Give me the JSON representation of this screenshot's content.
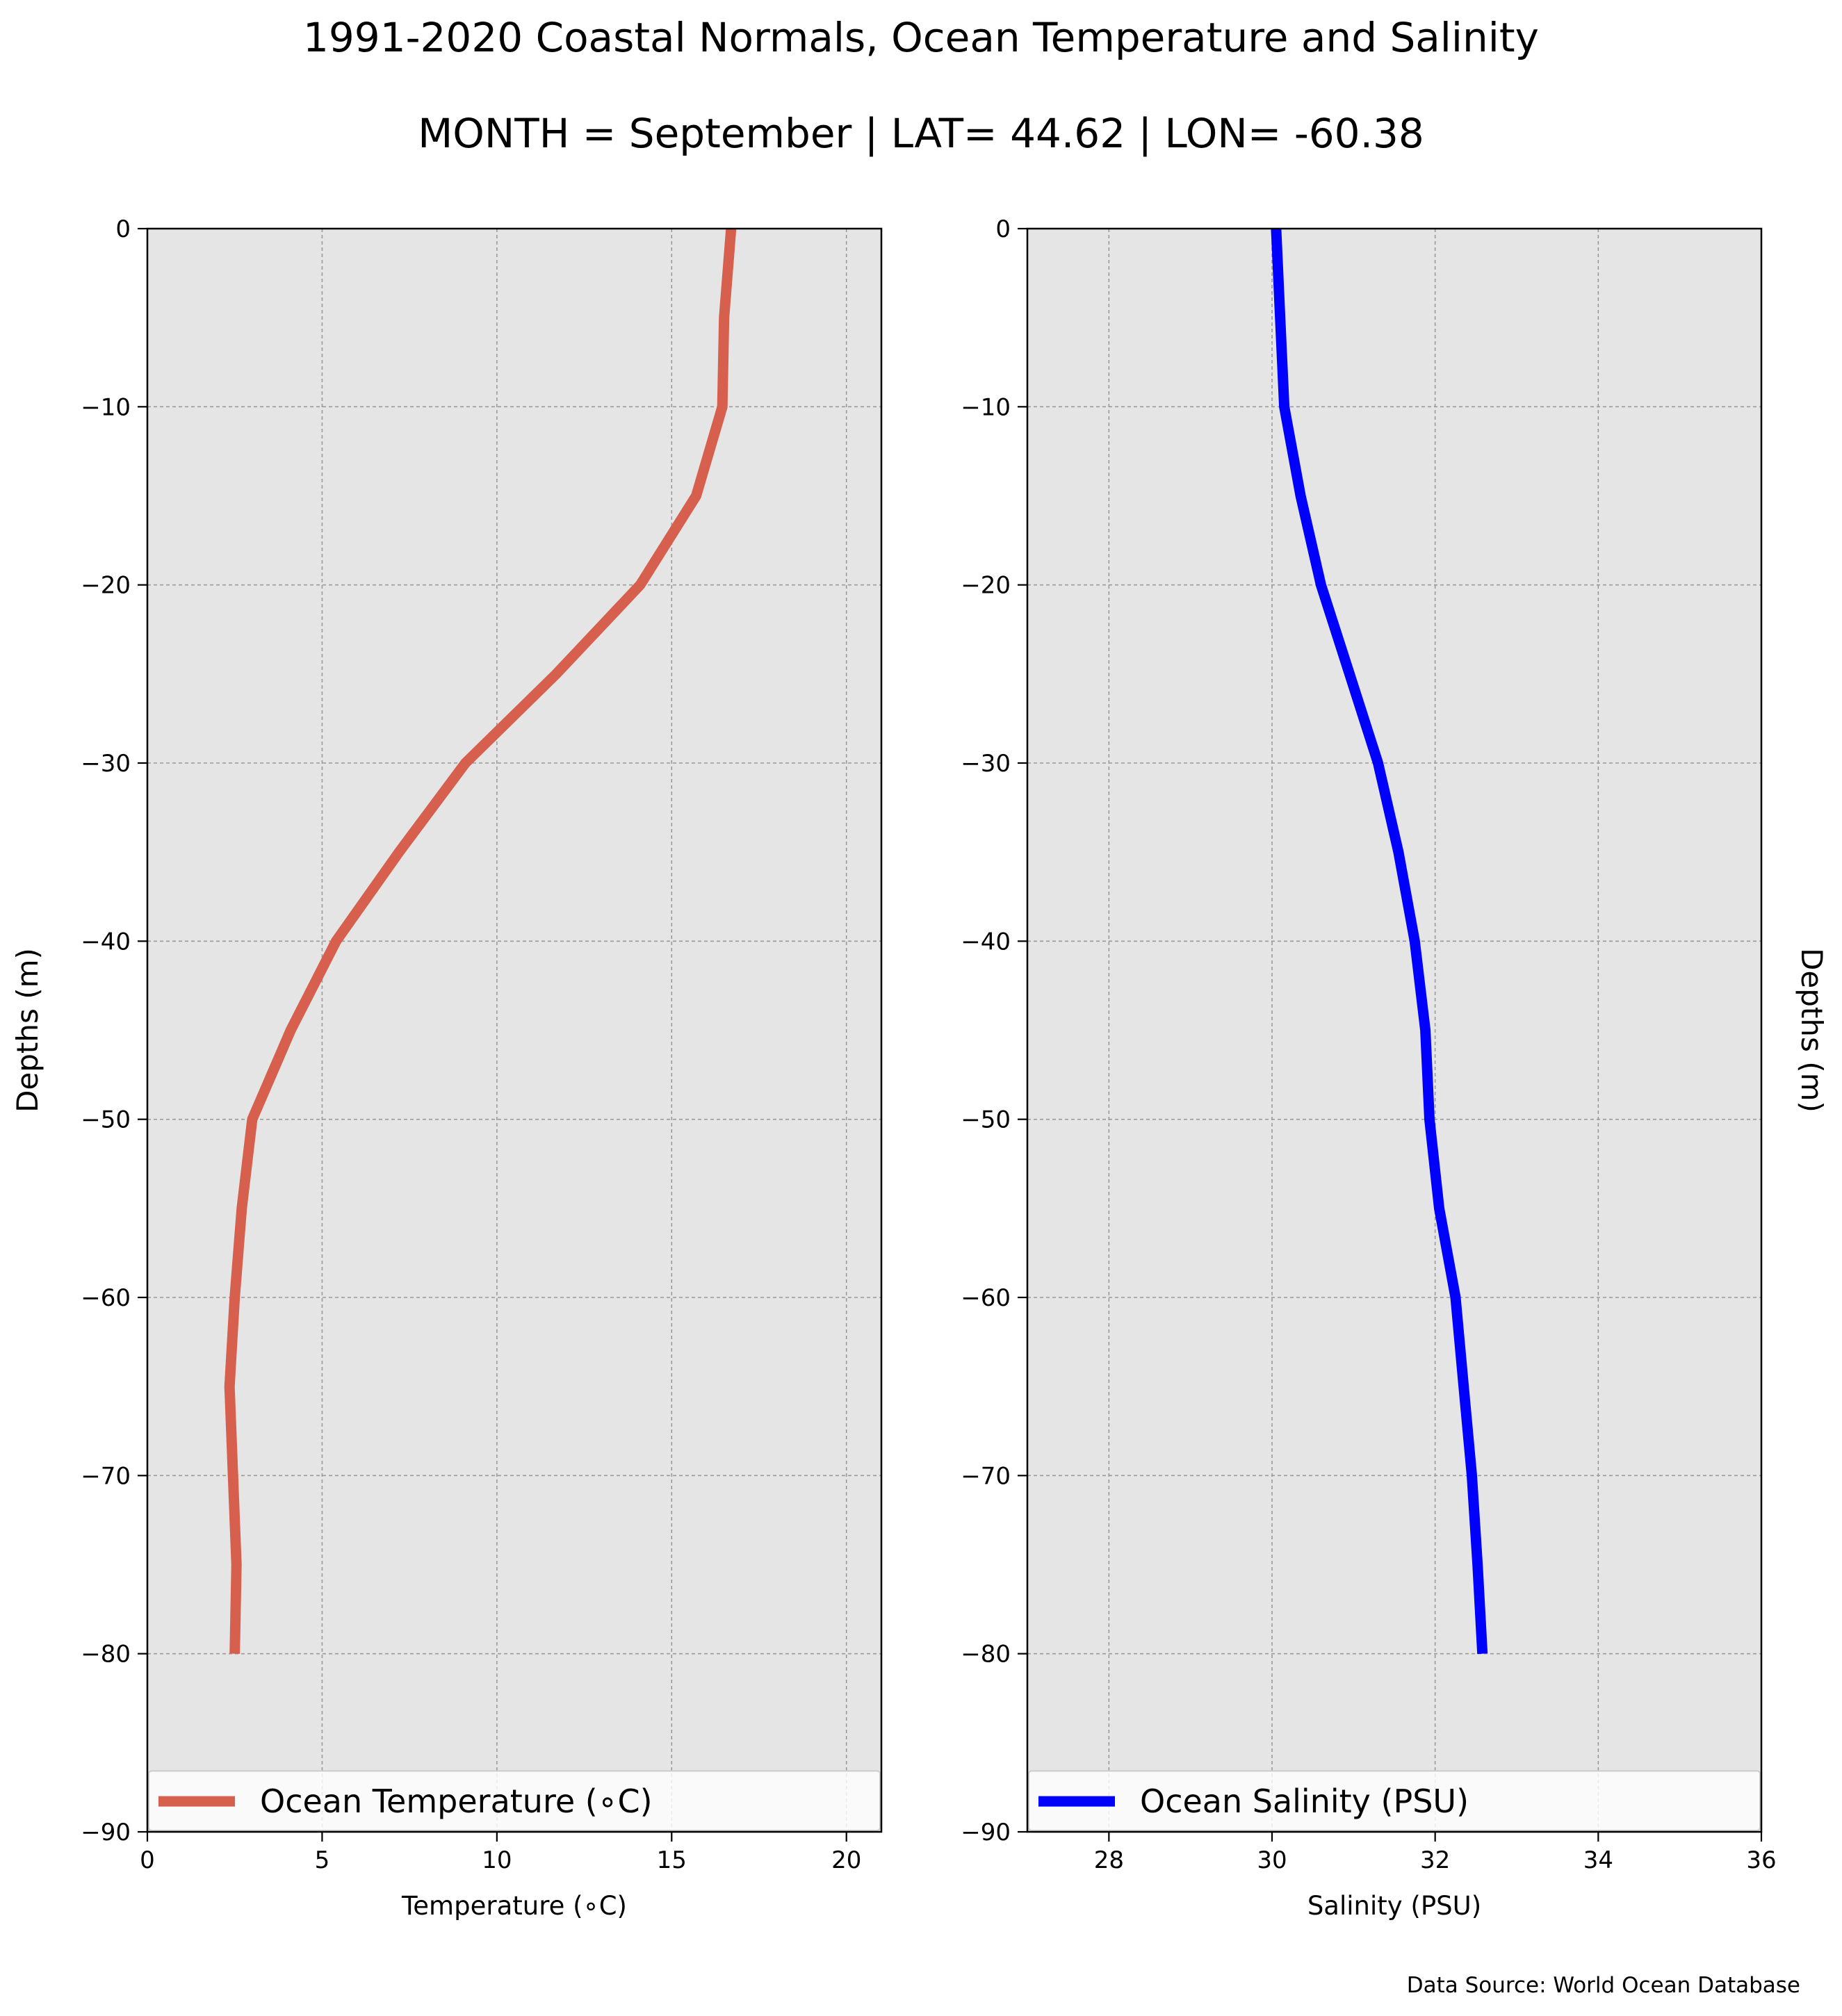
{
  "figure": {
    "title": "1991-2020 Coastal Normals, Ocean Temperature and Salinity",
    "subtitle": "MONTH = September | LAT= 44.62 | LON= -60.38",
    "source": "Data Source: World Ocean Database",
    "background_color": "#ffffff",
    "panel_color": "#e5e5e5"
  },
  "chart_data": [
    {
      "type": "line",
      "xlabel": "Temperature (∘C)",
      "ylabel": "Depths (m)",
      "xlim": [
        0,
        21
      ],
      "ylim": [
        -90,
        0
      ],
      "xticks": [
        0,
        5,
        10,
        15,
        20
      ],
      "xtick_labels": [
        "0",
        "5",
        "10",
        "15",
        "20"
      ],
      "yticks": [
        0,
        -10,
        -20,
        -30,
        -40,
        -50,
        -60,
        -70,
        -80,
        -90
      ],
      "ytick_labels": [
        "0",
        "−10",
        "−20",
        "−30",
        "−40",
        "−50",
        "−60",
        "−70",
        "−80",
        "−90"
      ],
      "grid": true,
      "legend_position": "bottom",
      "series": [
        {
          "name": "Ocean Temperature (∘C)",
          "color": "#d6604d",
          "x": [
            16.7,
            16.5,
            16.45,
            15.7,
            14.1,
            11.7,
            9.1,
            7.2,
            5.4,
            4.1,
            3.0,
            2.7,
            2.5,
            2.35,
            2.45,
            2.55,
            2.5
          ],
          "y": [
            0,
            -5,
            -10,
            -15,
            -20,
            -25,
            -30,
            -35,
            -40,
            -45,
            -50,
            -55,
            -60,
            -65,
            -70,
            -75,
            -80
          ]
        }
      ]
    },
    {
      "type": "line",
      "xlabel": "Salinity (PSU)",
      "ylabel": "Depths (m)",
      "xlim": [
        27,
        36
      ],
      "ylim": [
        -90,
        0
      ],
      "xticks": [
        28,
        30,
        32,
        34,
        36
      ],
      "xtick_labels": [
        "28",
        "30",
        "32",
        "34",
        "36"
      ],
      "yticks": [
        0,
        -10,
        -20,
        -30,
        -40,
        -50,
        -60,
        -70,
        -80,
        -90
      ],
      "ytick_labels": [
        "0",
        "−10",
        "−20",
        "−30",
        "−40",
        "−50",
        "−60",
        "−70",
        "−80",
        "−90"
      ],
      "grid": true,
      "legend_position": "bottom",
      "series": [
        {
          "name": "Ocean Salinity (PSU)",
          "color": "#0000ff",
          "x": [
            30.05,
            30.1,
            30.15,
            30.35,
            30.6,
            30.95,
            31.3,
            31.55,
            31.75,
            31.88,
            31.93,
            32.05,
            32.25,
            32.35,
            32.45,
            32.52,
            32.58
          ],
          "y": [
            0,
            -5,
            -10,
            -15,
            -20,
            -25,
            -30,
            -35,
            -40,
            -45,
            -50,
            -55,
            -60,
            -65,
            -70,
            -75,
            -80
          ]
        }
      ]
    }
  ]
}
